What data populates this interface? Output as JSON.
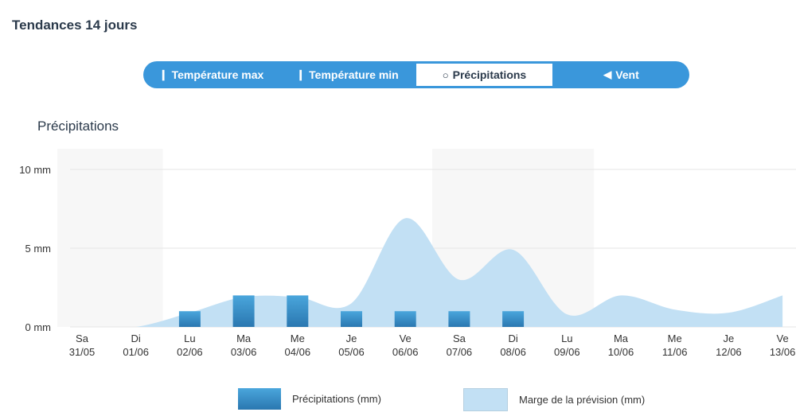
{
  "header": {
    "title": "Tendances 14 jours"
  },
  "tabs": [
    {
      "label": "Température max",
      "icon": "thermometer-icon",
      "active": false
    },
    {
      "label": "Température min",
      "icon": "thermometer-icon",
      "active": false
    },
    {
      "label": "Précipitations",
      "icon": "droplet-icon",
      "active": true
    },
    {
      "label": "Vent",
      "icon": "wind-arrow-icon",
      "active": false
    }
  ],
  "chart_data": {
    "type": "bar",
    "title": "Précipitations",
    "categories": [
      [
        "Sa",
        "31/05"
      ],
      [
        "Di",
        "01/06"
      ],
      [
        "Lu",
        "02/06"
      ],
      [
        "Ma",
        "03/06"
      ],
      [
        "Me",
        "04/06"
      ],
      [
        "Je",
        "05/06"
      ],
      [
        "Ve",
        "06/06"
      ],
      [
        "Sa",
        "07/06"
      ],
      [
        "Di",
        "08/06"
      ],
      [
        "Lu",
        "09/06"
      ],
      [
        "Ma",
        "10/06"
      ],
      [
        "Me",
        "11/06"
      ],
      [
        "Je",
        "12/06"
      ],
      [
        "Ve",
        "13/06"
      ]
    ],
    "yticks": [
      "0 mm",
      "5 mm",
      "10 mm"
    ],
    "ylim": [
      0,
      10
    ],
    "grid": true,
    "highlighted_days": [
      0,
      1,
      7,
      8,
      9
    ],
    "series": [
      {
        "name": "Précipitations (mm)",
        "type": "bar",
        "color": "#2f86c2",
        "values": [
          0,
          0,
          1,
          2,
          2,
          1,
          1,
          1,
          1,
          0,
          0,
          0,
          0,
          0
        ]
      },
      {
        "name": "Marge de la prévision (mm)",
        "type": "area",
        "color": "#c2e0f4",
        "values": [
          0,
          0,
          0.9,
          1.9,
          1.9,
          1.5,
          6.9,
          3.0,
          4.9,
          0.8,
          2.0,
          1.1,
          0.9,
          2.0
        ]
      }
    ],
    "legend_position": "bottom"
  }
}
